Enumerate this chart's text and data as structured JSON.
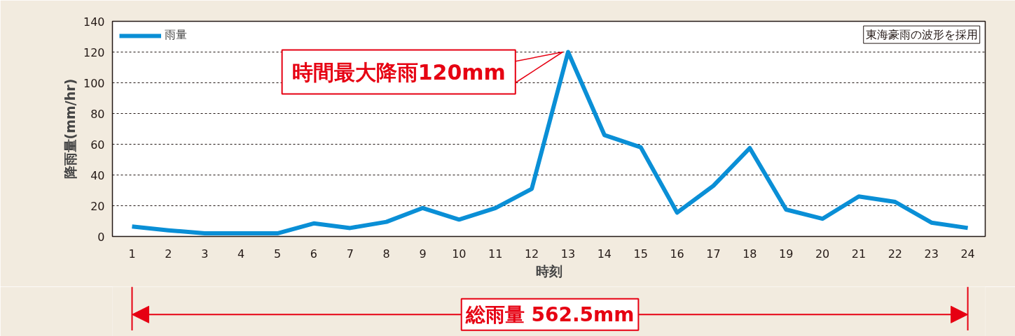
{
  "chart_data": {
    "type": "line",
    "xlabel": "時刻",
    "ylabel": "降雨量(mm/hr)",
    "x": [
      1,
      2,
      3,
      4,
      5,
      6,
      7,
      8,
      9,
      10,
      11,
      12,
      13,
      14,
      15,
      16,
      17,
      18,
      19,
      20,
      21,
      22,
      23,
      24
    ],
    "series": [
      {
        "name": "雨量",
        "color": "#0a8fd6",
        "values": [
          6.5,
          4,
          2,
          2,
          2,
          8.5,
          5.5,
          9.5,
          18.5,
          11,
          18.5,
          31,
          120,
          66,
          58,
          15.5,
          33,
          57.5,
          17.5,
          11.5,
          26,
          22.5,
          9,
          5.5
        ]
      }
    ],
    "xlim": [
      0.46,
      24.48
    ],
    "xticks": [
      1,
      2,
      3,
      4,
      5,
      6,
      7,
      8,
      9,
      10,
      11,
      12,
      13,
      14,
      15,
      16,
      17,
      18,
      19,
      20,
      21,
      22,
      23,
      24
    ],
    "ylim": [
      0,
      140
    ],
    "yticks": [
      0,
      20,
      40,
      60,
      80,
      100,
      120,
      140
    ],
    "grid": "y",
    "legend": "top left",
    "marker": "none",
    "line_style": "solid",
    "annotations": [
      {
        "text": "時間最大降雨120mm",
        "x": 13,
        "y": 120
      },
      "東海豪雨の波形を採用",
      "総雨量 562.5mm"
    ]
  }
}
